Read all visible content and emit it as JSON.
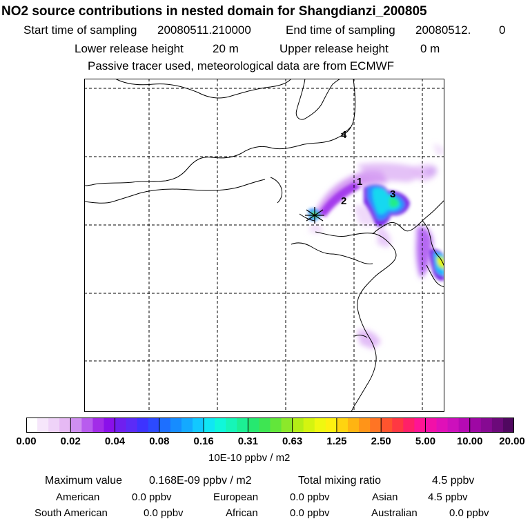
{
  "header": {
    "title": "NO2 source contributions in nested domain for Shangdianzi_200805",
    "start_label": "Start time of sampling",
    "start_value": "20080511.210000",
    "end_label": "End time of sampling",
    "end_value": "20080512.",
    "end_suffix": "0",
    "lower_label": "Lower release height",
    "lower_value": "20 m",
    "upper_label": "Upper release height",
    "upper_value": "0 m",
    "note": "Passive tracer used, meteorological data are from ECMWF"
  },
  "map": {
    "labels": [
      "1",
      "2",
      "3",
      "4"
    ],
    "station": "Shangdianzi"
  },
  "colorbar": {
    "ticks": [
      "0.00",
      "0.02",
      "0.04",
      "0.08",
      "0.16",
      "0.31",
      "0.63",
      "1.25",
      "2.50",
      "5.00",
      "10.00",
      "20.00"
    ],
    "unit": "10E-10 ppbv / m2",
    "colors": [
      "#ffffff",
      "#f6e6fb",
      "#efd3f8",
      "#e6b9f4",
      "#cf8ff0",
      "#b85cee",
      "#a22ce8",
      "#8a10ea",
      "#6f1fef",
      "#5b2bf7",
      "#3d33ff",
      "#2c4aff",
      "#1d6fff",
      "#168cff",
      "#14a9ff",
      "#12c8ff",
      "#10e6f4",
      "#10f7da",
      "#16f5b8",
      "#1cef94",
      "#26e870",
      "#3ee552",
      "#62e63a",
      "#8ce82a",
      "#b4ee16",
      "#d4f410",
      "#f0f810",
      "#fff010",
      "#ffd410",
      "#ffb412",
      "#ff9418",
      "#ff7424",
      "#ff542e",
      "#ff3842",
      "#ff2068",
      "#ff1494",
      "#f210a8",
      "#e010b8",
      "#cc10bc",
      "#b60ab4",
      "#9e08a4",
      "#860a92",
      "#6c0a7a",
      "#500860"
    ]
  },
  "summary": {
    "max_label": "Maximum value",
    "max_value": "0.168E-09 ppbv / m2",
    "total_label": "Total mixing ratio",
    "total_value": "4.5 ppbv",
    "regions": [
      {
        "name": "American",
        "value": "0.0 ppbv"
      },
      {
        "name": "European",
        "value": "0.0 ppbv"
      },
      {
        "name": "Asian",
        "value": "4.5 ppbv"
      },
      {
        "name": "South American",
        "value": "0.0 ppbv"
      },
      {
        "name": "African",
        "value": "0.0 ppbv"
      },
      {
        "name": "Australian",
        "value": "0.0 ppbv"
      }
    ]
  }
}
